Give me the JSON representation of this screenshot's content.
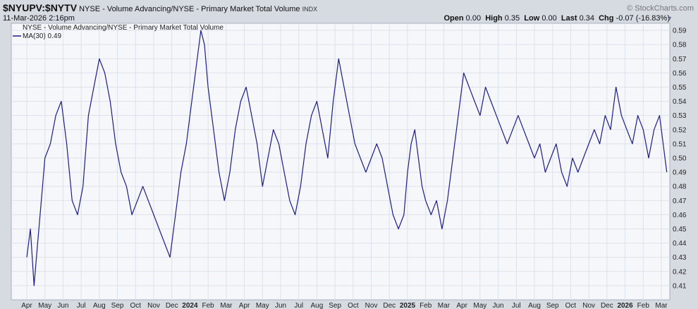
{
  "header": {
    "symbol": "$NYUPV:$NYTV",
    "description": "NYSE - Volume Advancing/NYSE - Primary Market Total Volume",
    "exchange": "INDX",
    "date": "11-Mar-2026 2:16pm",
    "brand": "© StockCharts.com",
    "open_label": "Open",
    "open_value": "0.00",
    "high_label": "High",
    "high_value": "0.35",
    "low_label": "Low",
    "low_value": "0.00",
    "last_label": "Last",
    "last_value": "0.34",
    "chg_label": "Chg",
    "chg_value": "-0.07 (-16.83%)"
  },
  "legend": {
    "series_name": "NYSE - Volume Advancing/NYSE - Primary Market Total Volume",
    "ma_label": "MA(30) 0.49"
  },
  "colors": {
    "line": "#1c1c8c",
    "plot_bg": "#f5f7fb",
    "grid": "#dde2ea",
    "frame": "#d6dbe2"
  },
  "chart_data": {
    "type": "line",
    "title": "NYSE - Volume Advancing/NYSE - Primary Market Total Volume",
    "ylim": [
      0.4,
      0.595
    ],
    "y_axis_side": "right",
    "y_ticks": [
      0.41,
      0.42,
      0.43,
      0.44,
      0.45,
      0.46,
      0.47,
      0.48,
      0.49,
      0.5,
      0.51,
      0.52,
      0.53,
      0.54,
      0.55,
      0.56,
      0.57,
      0.58,
      0.59
    ],
    "x_labels": [
      "Apr",
      "May",
      "Jun",
      "Jul",
      "Aug",
      "Sep",
      "Oct",
      "Nov",
      "Dec",
      "2024",
      "Feb",
      "Mar",
      "Apr",
      "May",
      "Jun",
      "Jul",
      "Aug",
      "Sep",
      "Oct",
      "Nov",
      "Dec",
      "2025",
      "Feb",
      "Mar",
      "Apr",
      "May",
      "Jun",
      "Jul",
      "Aug",
      "Sep",
      "Oct",
      "Nov",
      "Dec",
      "2026",
      "Feb",
      "Mar"
    ],
    "bold_labels": [
      "2024",
      "2025",
      "2026"
    ],
    "grid": true,
    "series": [
      {
        "name": "NYSE - Volume Advancing/NYSE - Primary Market Total Volume",
        "x": [
          0.0,
          0.2,
          0.4,
          0.6,
          0.8,
          1.0,
          1.3,
          1.6,
          1.9,
          2.2,
          2.5,
          2.8,
          3.1,
          3.4,
          3.7,
          4.0,
          4.3,
          4.6,
          4.9,
          5.2,
          5.5,
          5.8,
          6.1,
          6.4,
          6.7,
          7.0,
          7.3,
          7.6,
          7.9,
          8.2,
          8.5,
          8.8,
          9.0,
          9.2,
          9.4,
          9.6,
          9.8,
          10.0,
          10.3,
          10.6,
          10.9,
          11.2,
          11.5,
          11.8,
          12.1,
          12.4,
          12.7,
          13.0,
          13.3,
          13.6,
          13.9,
          14.2,
          14.5,
          14.8,
          15.1,
          15.4,
          15.7,
          16.0,
          16.3,
          16.6,
          16.9,
          17.2,
          17.5,
          17.8,
          18.1,
          18.4,
          18.7,
          19.0,
          19.3,
          19.6,
          19.9,
          20.2,
          20.5,
          20.8,
          21.0,
          21.2,
          21.4,
          21.6,
          21.8,
          22.0,
          22.3,
          22.6,
          22.9,
          23.2,
          23.5,
          23.8,
          24.1,
          24.4,
          24.7,
          25.0,
          25.3,
          25.6,
          25.9,
          26.2,
          26.5,
          26.8,
          27.1,
          27.4,
          27.7,
          28.0,
          28.3,
          28.6,
          28.9,
          29.2,
          29.5,
          29.8,
          30.1,
          30.4,
          30.7,
          31.0,
          31.3,
          31.6,
          31.9,
          32.2,
          32.5,
          32.8,
          33.1,
          33.4,
          33.7,
          34.0,
          34.3,
          34.6,
          34.9,
          35.1,
          35.3
        ],
        "values": [
          0.43,
          0.45,
          0.41,
          0.44,
          0.47,
          0.5,
          0.51,
          0.53,
          0.54,
          0.51,
          0.47,
          0.46,
          0.48,
          0.53,
          0.55,
          0.57,
          0.56,
          0.54,
          0.51,
          0.49,
          0.48,
          0.46,
          0.47,
          0.48,
          0.47,
          0.46,
          0.45,
          0.44,
          0.43,
          0.46,
          0.49,
          0.51,
          0.53,
          0.55,
          0.57,
          0.59,
          0.58,
          0.55,
          0.52,
          0.49,
          0.47,
          0.49,
          0.52,
          0.54,
          0.55,
          0.53,
          0.51,
          0.48,
          0.5,
          0.52,
          0.51,
          0.49,
          0.47,
          0.46,
          0.48,
          0.51,
          0.53,
          0.54,
          0.52,
          0.5,
          0.54,
          0.57,
          0.55,
          0.53,
          0.51,
          0.5,
          0.49,
          0.5,
          0.51,
          0.5,
          0.48,
          0.46,
          0.45,
          0.46,
          0.49,
          0.51,
          0.52,
          0.5,
          0.48,
          0.47,
          0.46,
          0.47,
          0.45,
          0.47,
          0.5,
          0.53,
          0.56,
          0.55,
          0.54,
          0.53,
          0.55,
          0.54,
          0.53,
          0.52,
          0.51,
          0.52,
          0.53,
          0.52,
          0.51,
          0.5,
          0.51,
          0.49,
          0.5,
          0.51,
          0.49,
          0.48,
          0.5,
          0.49,
          0.5,
          0.51,
          0.52,
          0.51,
          0.53,
          0.52,
          0.55,
          0.53,
          0.52,
          0.51,
          0.53,
          0.52,
          0.5,
          0.52,
          0.53,
          0.51,
          0.49
        ]
      }
    ]
  }
}
